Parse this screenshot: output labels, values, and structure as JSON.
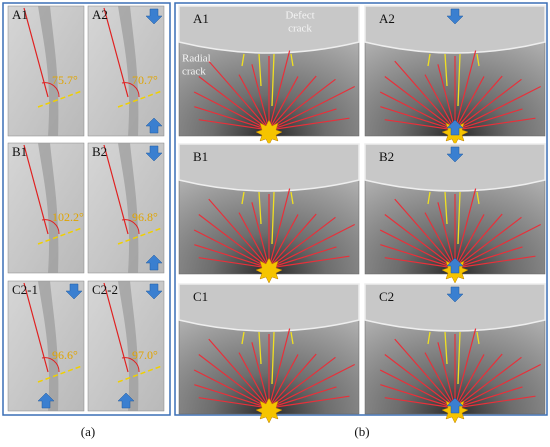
{
  "figure_a": {
    "panels": [
      {
        "label": "A1",
        "angle": "75.7°"
      },
      {
        "label": "A2",
        "angle": "70.7°"
      },
      {
        "label": "B1",
        "angle": "102.2°"
      },
      {
        "label": "B2",
        "angle": "96.8°"
      },
      {
        "label": "C2-1",
        "angle": "96.6°"
      },
      {
        "label": "C2-2",
        "angle": "97.0°"
      }
    ],
    "caption": "(a)"
  },
  "figure_b": {
    "panels": [
      {
        "label": "A1"
      },
      {
        "label": "A2"
      },
      {
        "label": "B1"
      },
      {
        "label": "B2"
      },
      {
        "label": "C1"
      },
      {
        "label": "C2"
      }
    ],
    "defect_crack": [
      "Defect",
      "crack"
    ],
    "radial_crack": [
      "Radial",
      "crack"
    ],
    "caption": "(b)"
  }
}
